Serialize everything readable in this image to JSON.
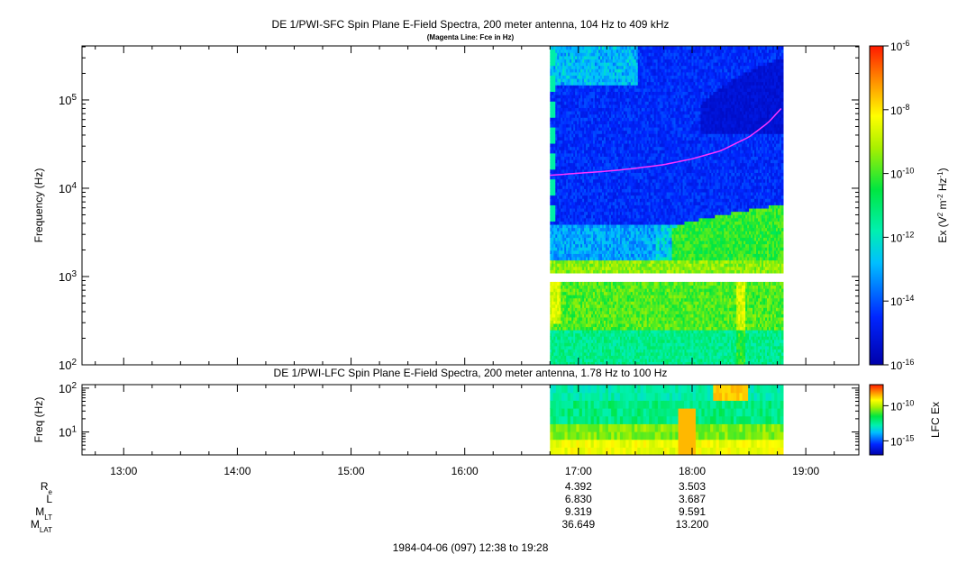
{
  "chart_data": [
    {
      "type": "heatmap",
      "title": "DE 1/PWI-SFC  Spin Plane E-Field Spectra, 200 meter antenna, 104 Hz to 409 kHz",
      "subtitle": "(Magenta Line: Fce in Hz)",
      "ylabel": "Frequency (Hz)",
      "yscale": "log",
      "ylim": [
        100,
        409000
      ],
      "yticks": [
        {
          "base": "10",
          "exp": "2",
          "value": 100
        },
        {
          "base": "10",
          "exp": "3",
          "value": 1000
        },
        {
          "base": "10",
          "exp": "4",
          "value": 10000
        },
        {
          "base": "10",
          "exp": "5",
          "value": 100000
        }
      ],
      "data_time_range": [
        "16:45",
        "18:48"
      ],
      "colorbar": {
        "label": "Ex (V2 m-2 Hz-1)",
        "label_parts": [
          "Ex (V",
          "2",
          " m",
          "-2",
          " Hz",
          "-1",
          ")"
        ],
        "scale": "log",
        "range": [
          1e-16,
          1e-06
        ],
        "ticks": [
          {
            "base": "10",
            "exp": "-6",
            "value": 1e-06
          },
          {
            "base": "10",
            "exp": "-8",
            "value": 1e-08
          },
          {
            "base": "10",
            "exp": "-10",
            "value": 1e-10
          },
          {
            "base": "10",
            "exp": "-12",
            "value": 1e-12
          },
          {
            "base": "10",
            "exp": "-14",
            "value": 1e-14
          },
          {
            "base": "10",
            "exp": "-16",
            "value": 1e-16
          }
        ]
      },
      "fce_line": {
        "color": "#ff33ff",
        "time": [
          "16:45",
          "17:00",
          "17:15",
          "17:30",
          "17:45",
          "18:00",
          "18:15",
          "18:30",
          "18:40",
          "18:47"
        ],
        "hz": [
          14000,
          14800,
          15600,
          16800,
          18500,
          21500,
          26500,
          38000,
          55000,
          80000
        ]
      }
    },
    {
      "type": "heatmap",
      "title": "DE 1/PWI-LFC  Spin Plane E-Field Spectra, 200 meter antenna, 1.78 Hz to 100 Hz",
      "ylabel": "Freq (Hz)",
      "yscale": "log",
      "ylim": [
        3,
        120
      ],
      "yticks": [
        {
          "base": "10",
          "exp": "1",
          "value": 10
        },
        {
          "base": "10",
          "exp": "2",
          "value": 100
        }
      ],
      "data_time_range": [
        "16:45",
        "18:48"
      ],
      "colorbar": {
        "label": "LFC Ex",
        "scale": "log",
        "ticks": [
          {
            "base": "10",
            "exp": "-10",
            "value": 1e-10
          },
          {
            "base": "10",
            "exp": "-15",
            "value": 1e-15
          }
        ]
      }
    }
  ],
  "time_axis": {
    "range": [
      "12:38",
      "19:28"
    ],
    "ticks": [
      "13:00",
      "14:00",
      "15:00",
      "16:00",
      "17:00",
      "18:00",
      "19:00"
    ]
  },
  "ephemeris": {
    "rows": [
      {
        "label": "R",
        "sub": "e",
        "values": [
          "4.392",
          "3.503"
        ]
      },
      {
        "label": "L",
        "sub": "",
        "values": [
          "6.830",
          "3.687"
        ]
      },
      {
        "label": "M",
        "sub": "LT",
        "values": [
          "9.319",
          "9.591"
        ]
      },
      {
        "label": "M",
        "sub": "LAT",
        "values": [
          "36.649",
          "13.200"
        ]
      }
    ],
    "columns": [
      "17:00",
      "18:00"
    ]
  },
  "footer": "1984-04-06 (097) 12:38 to 19:28"
}
